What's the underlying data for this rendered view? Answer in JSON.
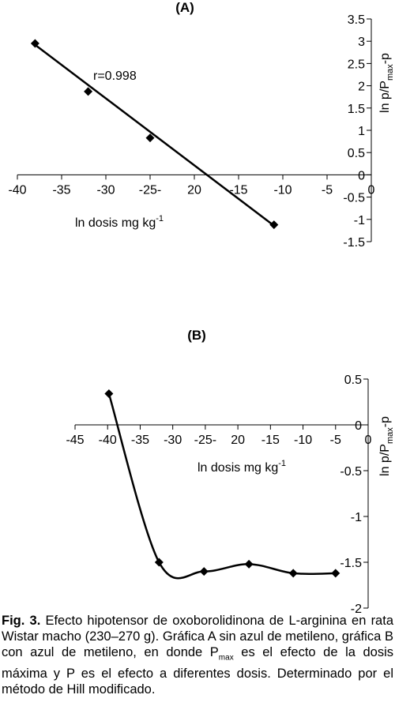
{
  "chart_data": [
    {
      "type": "scatter",
      "title": "(A)",
      "xlabel": "ln dosis mg kg",
      "xlabel_sup": "-1",
      "ylabel_parts": [
        "ln p/P",
        "max",
        "-p"
      ],
      "annotation": "r=0.998",
      "xlim": [
        -40,
        0
      ],
      "ylim": [
        -1.5,
        3.5
      ],
      "x_ticks": [
        -40,
        -35,
        -30,
        -25,
        -20,
        -15,
        -10,
        -5,
        0
      ],
      "x_tick_labels": [
        "-40",
        "-35",
        "-30",
        "-25-",
        "20",
        "-15",
        "-10",
        "-5",
        "0"
      ],
      "y_ticks": [
        3.5,
        3,
        2.5,
        2,
        1.5,
        1,
        0.5,
        0,
        -0.5,
        -1,
        -1.5
      ],
      "y_tick_labels": [
        "3.5",
        "3",
        "2.5",
        "2",
        "1.5",
        "1",
        "0.5",
        "0",
        "-0.5",
        "-1",
        "-1.5"
      ],
      "points": [
        {
          "x": -38,
          "y": 2.95
        },
        {
          "x": -32,
          "y": 1.87
        },
        {
          "x": -25,
          "y": 0.83
        },
        {
          "x": -11,
          "y": -1.12
        }
      ],
      "fit_line": {
        "x": [
          -38,
          -11
        ],
        "y": [
          2.92,
          -1.14
        ]
      }
    },
    {
      "type": "line",
      "title": "(B)",
      "xlabel": "ln dosis mg kg",
      "xlabel_sup": "-1",
      "ylabel_parts": [
        "ln p/P",
        "max",
        "-p"
      ],
      "xlim": [
        -45,
        0
      ],
      "ylim": [
        -2,
        0.5
      ],
      "x_ticks": [
        -45,
        -40,
        -35,
        -30,
        -25,
        -20,
        -15,
        -10,
        -5,
        0
      ],
      "x_tick_labels": [
        "-45",
        "-40",
        "-35",
        "-30",
        "-25-",
        "20",
        "-15",
        "-10",
        "-5",
        "0"
      ],
      "y_ticks": [
        0.5,
        0,
        -0.5,
        -1,
        -1.5,
        -2
      ],
      "y_tick_labels": [
        "0.5",
        "0",
        "-0.5",
        "-1",
        "-1.5",
        "-2"
      ],
      "points": [
        {
          "x": -39.8,
          "y": 0.34
        },
        {
          "x": -32.1,
          "y": -1.5
        },
        {
          "x": -25.2,
          "y": -1.6
        },
        {
          "x": -18.3,
          "y": -1.52
        },
        {
          "x": -11.5,
          "y": -1.62
        },
        {
          "x": -5.0,
          "y": -1.62
        }
      ]
    }
  ],
  "caption": {
    "label": "Fig. 3.",
    "line1": " Efecto hipotensor de oxoborolidinona de L-arginina en rata Wistar macho (230–270 g). Gráfica A sin azul de metileno, gráfica B con azul de metileno, en donde P",
    "sub": "max",
    "line2": " es el efecto de la dosis máxima y P es el efecto a diferentes dosis. Determinado por el método de Hill modificado."
  }
}
